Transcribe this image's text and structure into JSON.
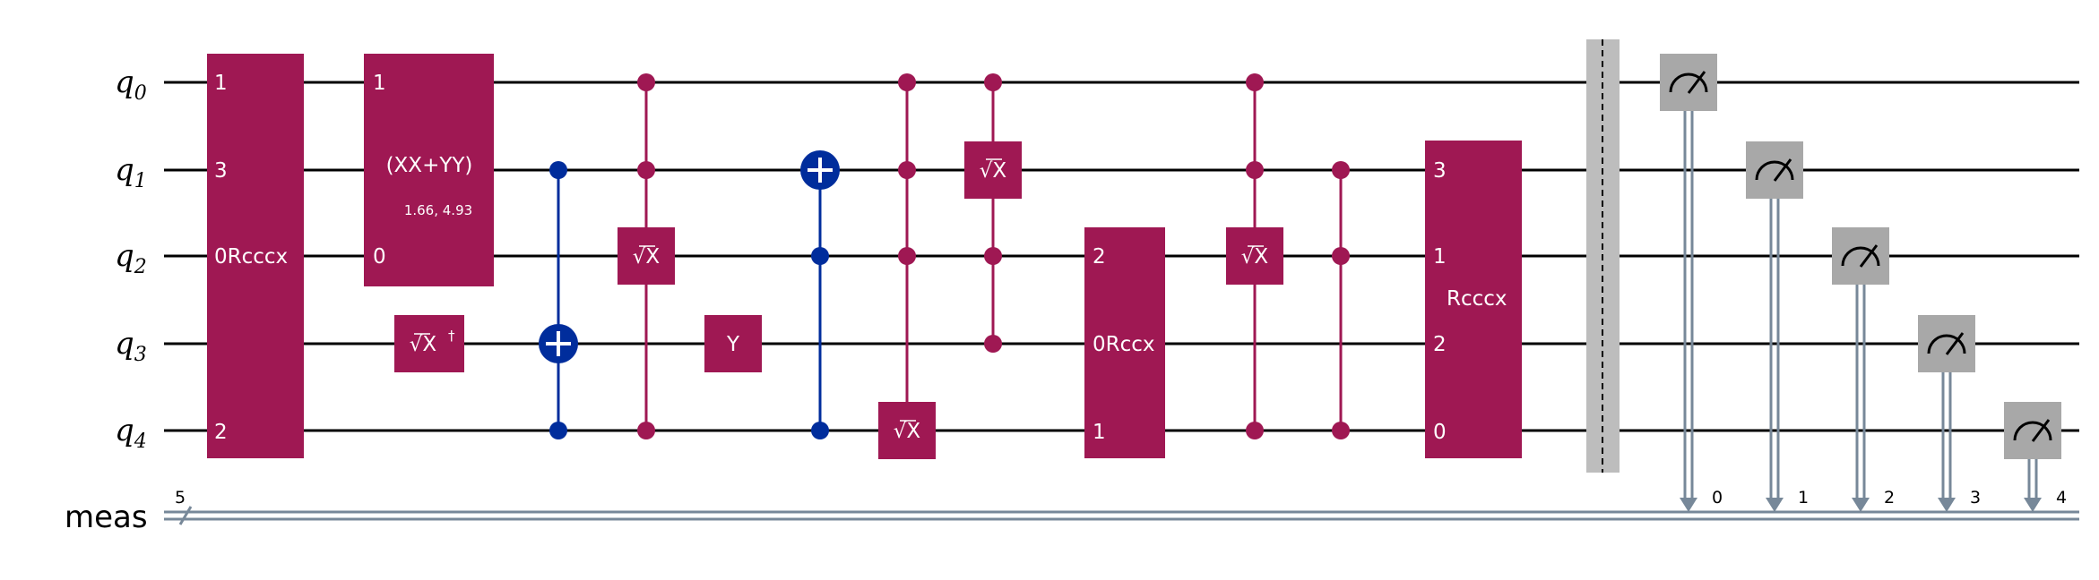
{
  "colors": {
    "multi_qubit_gate": "#9f1853",
    "cx_gate": "#002d9c",
    "measure_gate": "#a8a8a8",
    "classical_wire": "#778899",
    "barrier": "#bdbdbd",
    "wire": "#000000"
  },
  "wires": {
    "qubits": [
      {
        "name": "q",
        "index": "0"
      },
      {
        "name": "q",
        "index": "1"
      },
      {
        "name": "q",
        "index": "2"
      },
      {
        "name": "q",
        "index": "3"
      },
      {
        "name": "q",
        "index": "4"
      }
    ],
    "classical": {
      "name": "meas",
      "width": "5"
    }
  },
  "gates": {
    "rcccx_first": {
      "label": "0Rcccx",
      "pins": [
        "1",
        "3",
        "2"
      ]
    },
    "xx_plus_yy": {
      "label": "(XX+YY)",
      "params": "1.66, 4.93",
      "pins": [
        "1",
        "0"
      ]
    },
    "sxdg": {
      "label": "√X",
      "dagger": "†"
    },
    "csx_a": {
      "label": "√X"
    },
    "y": {
      "label": "Y"
    },
    "csx_b": {
      "label": "√X"
    },
    "csx_c": {
      "label": "√X"
    },
    "rccx": {
      "label": "0Rccx",
      "pins": [
        "2",
        "1"
      ]
    },
    "csx_d": {
      "label": "√X"
    },
    "rcccx_second": {
      "label": "Rcccx",
      "pins": [
        "3",
        "1",
        "2",
        "0"
      ]
    }
  },
  "measurements": {
    "bits": [
      "0",
      "1",
      "2",
      "3",
      "4"
    ],
    "icon": "meter-icon"
  }
}
